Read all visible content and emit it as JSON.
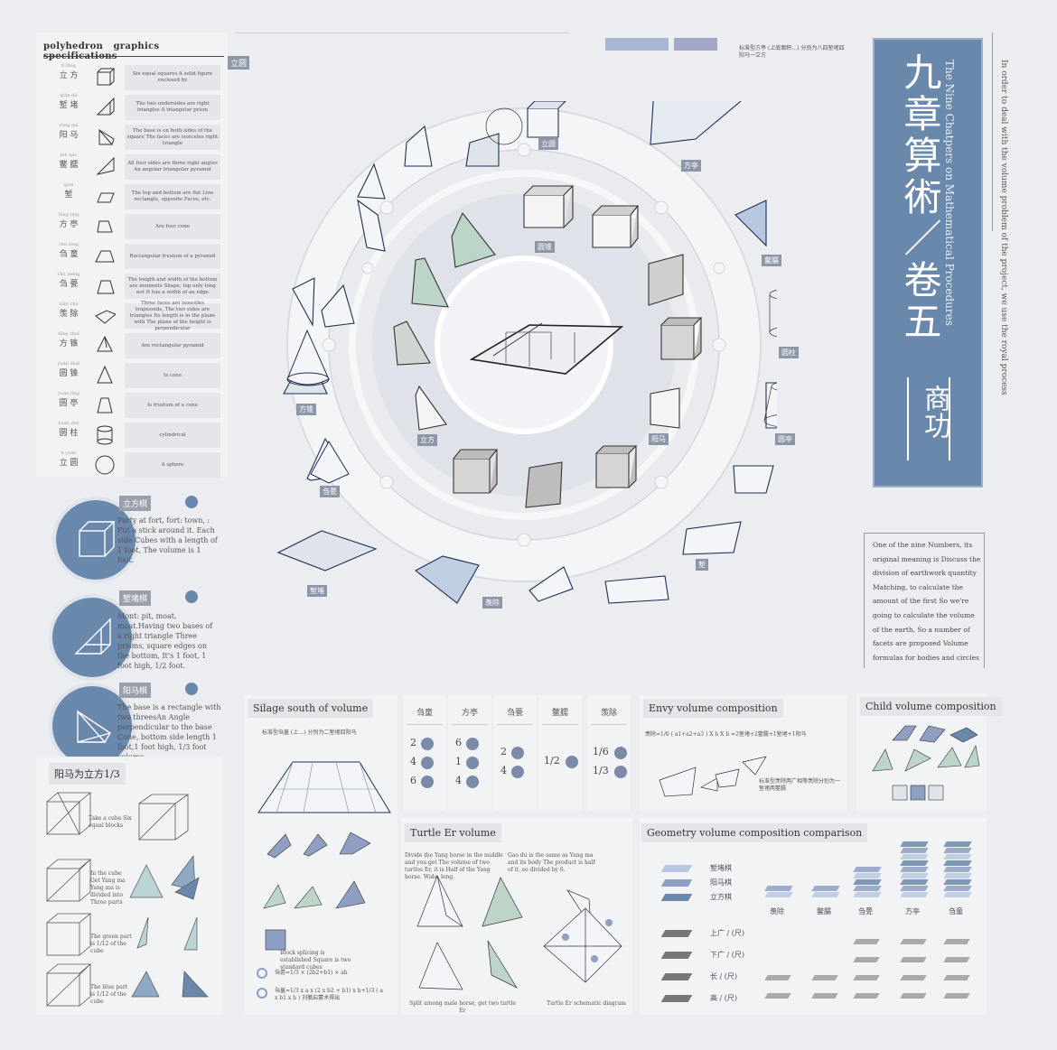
{
  "left_table": {
    "headers": [
      "polyhedron",
      "graphics",
      "specifications"
    ],
    "rows": [
      {
        "pinyin": "lì  fāng",
        "name": "立 方",
        "desc": "Six equal squares A solid figure enclosed by"
      },
      {
        "pinyin": "qiàn  dǔ",
        "name": "堑 堵",
        "desc": "The two undersides are right triangles A triangular prism"
      },
      {
        "pinyin": "yáng  mǎ",
        "name": "阳 马",
        "desc": "The base is on both sides of the square The faces are isosceles right triangle"
      },
      {
        "pinyin": "biē  nào",
        "name": "鳖 臑",
        "desc": "All four sides are three right angles An angular triangular pyramid"
      },
      {
        "pinyin": "qiàn",
        "name": "堑",
        "desc": "The top and bottom are flat Line rectangle, opposite Faces, etc."
      },
      {
        "pinyin": "fāng tíng",
        "name": "方 亭",
        "desc": "Are four cone"
      },
      {
        "pinyin": "chú tóng",
        "name": "刍 童",
        "desc": "Rectangular frustum of a pyramid"
      },
      {
        "pinyin": "chú méng",
        "name": "刍 甍",
        "desc": "The length and width of the bottom are moments Shape, top only long not It has a width of an edge"
      },
      {
        "pinyin": "xiàn  chú",
        "name": "羡 除",
        "desc": "Three faces are isosceles trapezoids, The two sides are triangles Its length is in the plane with The plane of the height is perpendicular"
      },
      {
        "pinyin": "fāng  zhuī",
        "name": "方 锥",
        "desc": "Are rectangular pyramid"
      },
      {
        "pinyin": "yuán  zhuī",
        "name": "圆 锥",
        "desc": "Is cone"
      },
      {
        "pinyin": "yuán  tíng",
        "name": "圆 亭",
        "desc": "Is frustum of a cone"
      },
      {
        "pinyin": "yuán  zhù",
        "name": "圆 柱",
        "desc": "cylindrical"
      },
      {
        "pinyin": "lì  yuán",
        "name": "立 圆",
        "desc": "A sphere"
      }
    ]
  },
  "blocks": [
    {
      "tag": "立方棋",
      "text": "Party at fort, fort: town, : Put a stick around it. Each side Cubes with a length of 1 foot, The volume is 1 foot."
    },
    {
      "tag": "堑堵棋",
      "text": "Mont: pit, moat, moat.Having two bases of a right triangle Three prisms, square edges on the bottom, It's 1 foot, 1 foot high, 1/2 foot."
    },
    {
      "tag": "阳马棋",
      "text": "The base is a rectangle with two threesAn Angle perpendicular to the base Cone, bottom side length 1 foot,1 foot high, 1/3 foot volume."
    }
  ],
  "yangma": {
    "title": "阳马为立方1/3",
    "notes": [
      "Take a cube Six equal blocks",
      "In the cube Get Yang ma Yang ma is divided into Three parts",
      "The green part is 1/12 of the cube",
      "The blue part is 1/12 of the cube"
    ]
  },
  "center": {
    "top_badge": "立圆",
    "top_note": "标准型方亭 (上底面积…) 分别为八四堑堵四阳马一立方",
    "labels": [
      "立圆",
      "方亭",
      "鳖臑",
      "圆柱",
      "圆亭",
      "堑",
      "羡除",
      "堑堵",
      "刍甍",
      "方锥",
      "圆锥",
      "立方",
      "阳马",
      "堑堵"
    ]
  },
  "title_panel": {
    "main": "九章算術／卷五",
    "english": "The Nine Chatpers on Mathematical Procedures",
    "sub": "商功",
    "side": "In order to deal with the volume problem of the project, we use the royal process"
  },
  "intro": "One of the nine Numbers, its original meaning is Discuss the division of earthwork quantity Matching, to calculate the amount of the first So we're going to calculate the volume of the earth, So a number of facets are proposed Volume formulas for bodies and circles",
  "silage": {
    "title": "Silage south of volume",
    "note": "标准型刍童 (上…) 分别为二堑堵四阳马",
    "block_note": "Block splicing is established Square is two standard cubes",
    "formula1": "刍甍=1/3 × (2b2+b1) × ah",
    "formula2": "刍童=1/3 x a x (2 x b2 + b1) x h+1/3 ( a x b1 x h ) 刘徽启蒙术得出"
  },
  "table": {
    "headers": [
      "刍童",
      "方亭",
      "刍甍",
      "鳖臑",
      "羡除"
    ],
    "values": [
      [
        "2",
        "4",
        "6"
      ],
      [
        "6",
        "1",
        "4"
      ],
      [
        "2",
        "4"
      ],
      [
        "1/2"
      ],
      [
        "1/6",
        "1/3"
      ]
    ]
  },
  "envy": {
    "title": "Envy volume composition",
    "formula": "羡除=1/6 ( a1+a2+a3 ) X h X b =2堑堵+2鳖臑+1堑堵+1阳马",
    "note": "标准型羡除两广相等羡除分别为一堑堵两鳖臑"
  },
  "child": {
    "title": "Child volume composition"
  },
  "turtle": {
    "title": "Turtle Er volume",
    "text1": "Divide the Yang horse in the middle and you get The volume of two turtles Er, it is Half of the Yang horse. Wide, long.",
    "text2": "Gao du is the same as Yang ma and its body The product is half of it, so divided by 6.",
    "cap1": "Split among male horse, get two turtle Er",
    "cap2": "Turtle Er schematic diagram"
  },
  "geo": {
    "title": "Geometry volume composition comparison",
    "legend": [
      "堑堵棋",
      "阳马棋",
      "立方棋"
    ],
    "dims": [
      "上广 / (尺)",
      "下广 / (尺)",
      "长  / (尺)",
      "高  / (尺)"
    ],
    "columns": [
      "羡除",
      "鳖臑",
      "刍甍",
      "方亭",
      "刍童"
    ]
  },
  "colors": {
    "accent": "#6a87ac",
    "panel": "#f2f3f5",
    "bg": "#ecedf0"
  }
}
